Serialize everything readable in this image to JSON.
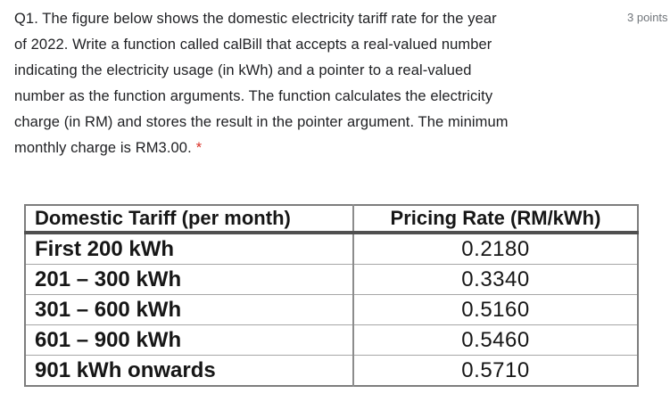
{
  "question": {
    "lines": [
      "Q1. The figure below shows the domestic electricity tariff rate for the year",
      "of 2022. Write a function called calBill that accepts a real-valued number",
      "indicating the electricity usage (in kWh) and a pointer to a real-valued",
      "number as the function arguments. The function calculates the electricity",
      "charge (in RM) and stores the result in the pointer argument. The minimum",
      "monthly charge is RM3.00."
    ],
    "required_marker": "*",
    "points_label": "3 points"
  },
  "table": {
    "headers": [
      "Domestic Tariff (per month)",
      "Pricing Rate (RM/kWh)"
    ],
    "rows": [
      {
        "tier": "First 200 kWh",
        "rate": "0.2180"
      },
      {
        "tier": "201 – 300 kWh",
        "rate": "0.3340"
      },
      {
        "tier": "301 – 600 kWh",
        "rate": "0.5160"
      },
      {
        "tier": "601 – 900 kWh",
        "rate": "0.5460"
      },
      {
        "tier": "901 kWh onwards",
        "rate": "0.5710"
      }
    ]
  },
  "colors": {
    "question_text": "#202124",
    "points_text": "#70757a",
    "required_red": "#d93025",
    "table_text": "#161616",
    "table_border_outer": "#7d7d7d",
    "table_border_inner": "#a6a6a6",
    "header_underline": "#4f4f4f"
  }
}
